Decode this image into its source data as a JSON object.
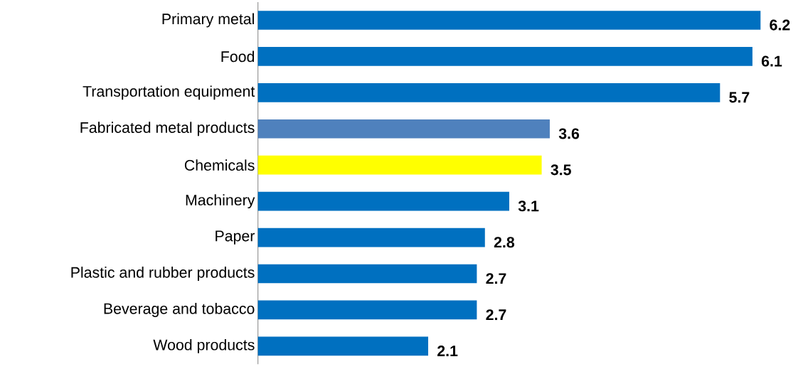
{
  "chart_data": {
    "type": "bar",
    "orientation": "horizontal",
    "categories": [
      "Primary metal",
      "Food",
      "Transportation equipment",
      "Fabricated metal products",
      "Chemicals",
      "Machinery",
      "Paper",
      "Plastic and rubber products",
      "Beverage and tobacco",
      "Wood products"
    ],
    "values": [
      6.2,
      6.1,
      5.7,
      3.6,
      3.5,
      3.1,
      2.8,
      2.7,
      2.7,
      2.1
    ],
    "colors": [
      "#0070c0",
      "#0070c0",
      "#0070c0",
      "#4f81bd",
      "#ffff00",
      "#0070c0",
      "#0070c0",
      "#0070c0",
      "#0070c0",
      "#0070c0"
    ],
    "data_labels": true
  }
}
